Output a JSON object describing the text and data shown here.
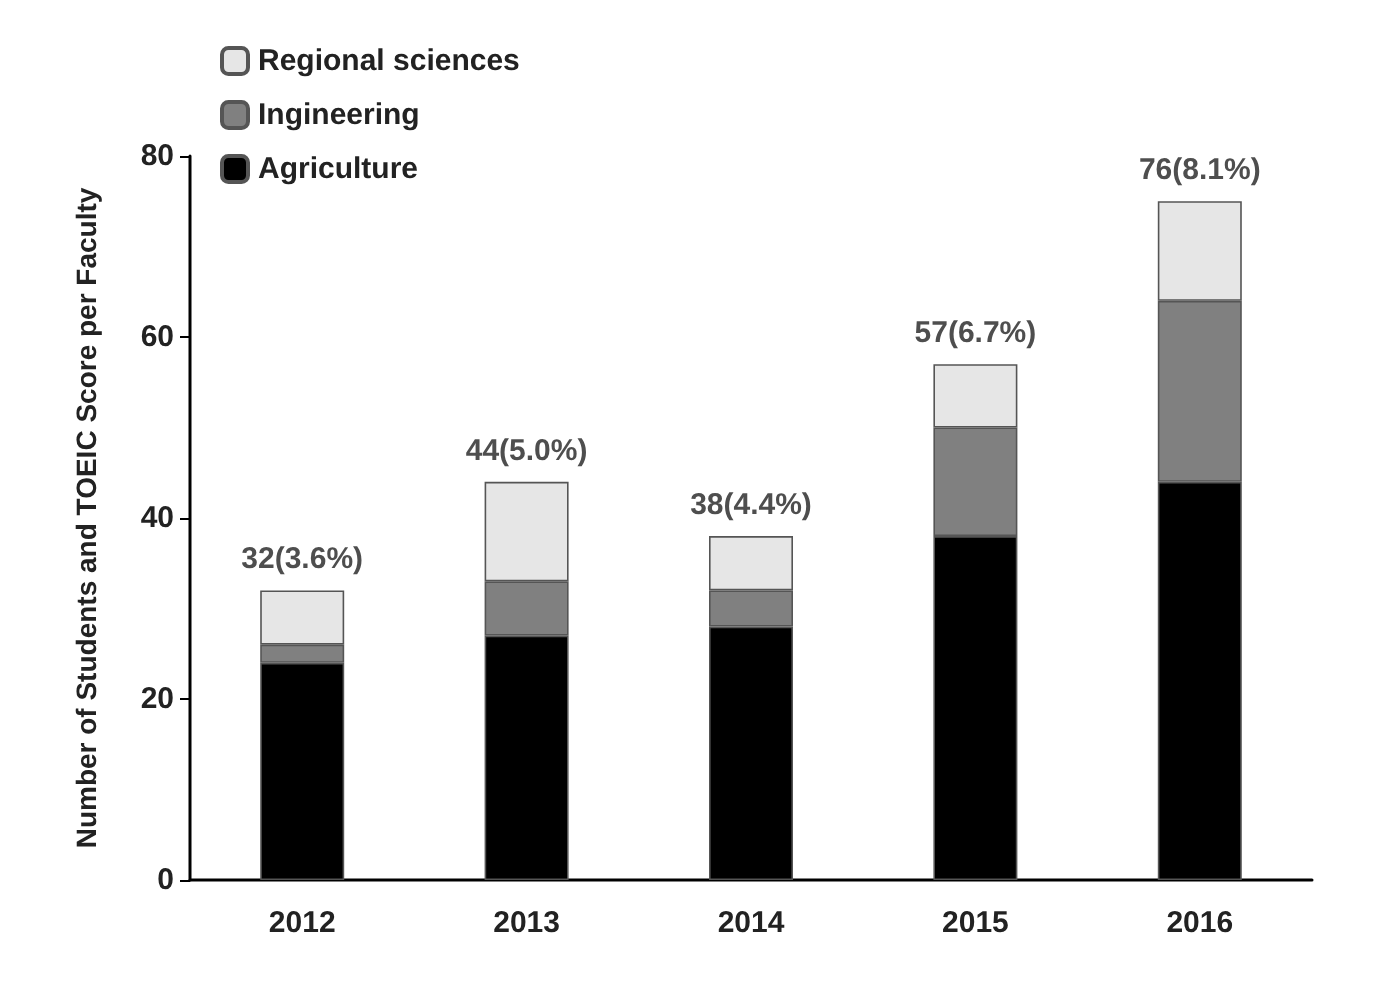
{
  "chart_data": {
    "type": "bar",
    "stacked": true,
    "ylabel": "Number of Students and TOEIC Score per Faculty",
    "categories": [
      "2012",
      "2013",
      "2014",
      "2015",
      "2016"
    ],
    "series": [
      {
        "name": "Agriculture",
        "color": "#000000",
        "values": [
          24,
          27,
          28,
          38,
          44
        ]
      },
      {
        "name": "Ingineering",
        "color": "#808080",
        "values": [
          2,
          6,
          4,
          12,
          20
        ]
      },
      {
        "name": "Regional sciences",
        "color": "#e6e6e6",
        "values": [
          6,
          11,
          6,
          7,
          11
        ]
      }
    ],
    "totals": [
      "32(3.6%)",
      "44(5.0%)",
      "38(4.4%)",
      "57(6.7%)",
      "76(8.1%)"
    ],
    "ylim": [
      0,
      80
    ],
    "yticks": [
      0,
      20,
      40,
      60,
      80
    ],
    "grid": false,
    "legend": "top left"
  }
}
